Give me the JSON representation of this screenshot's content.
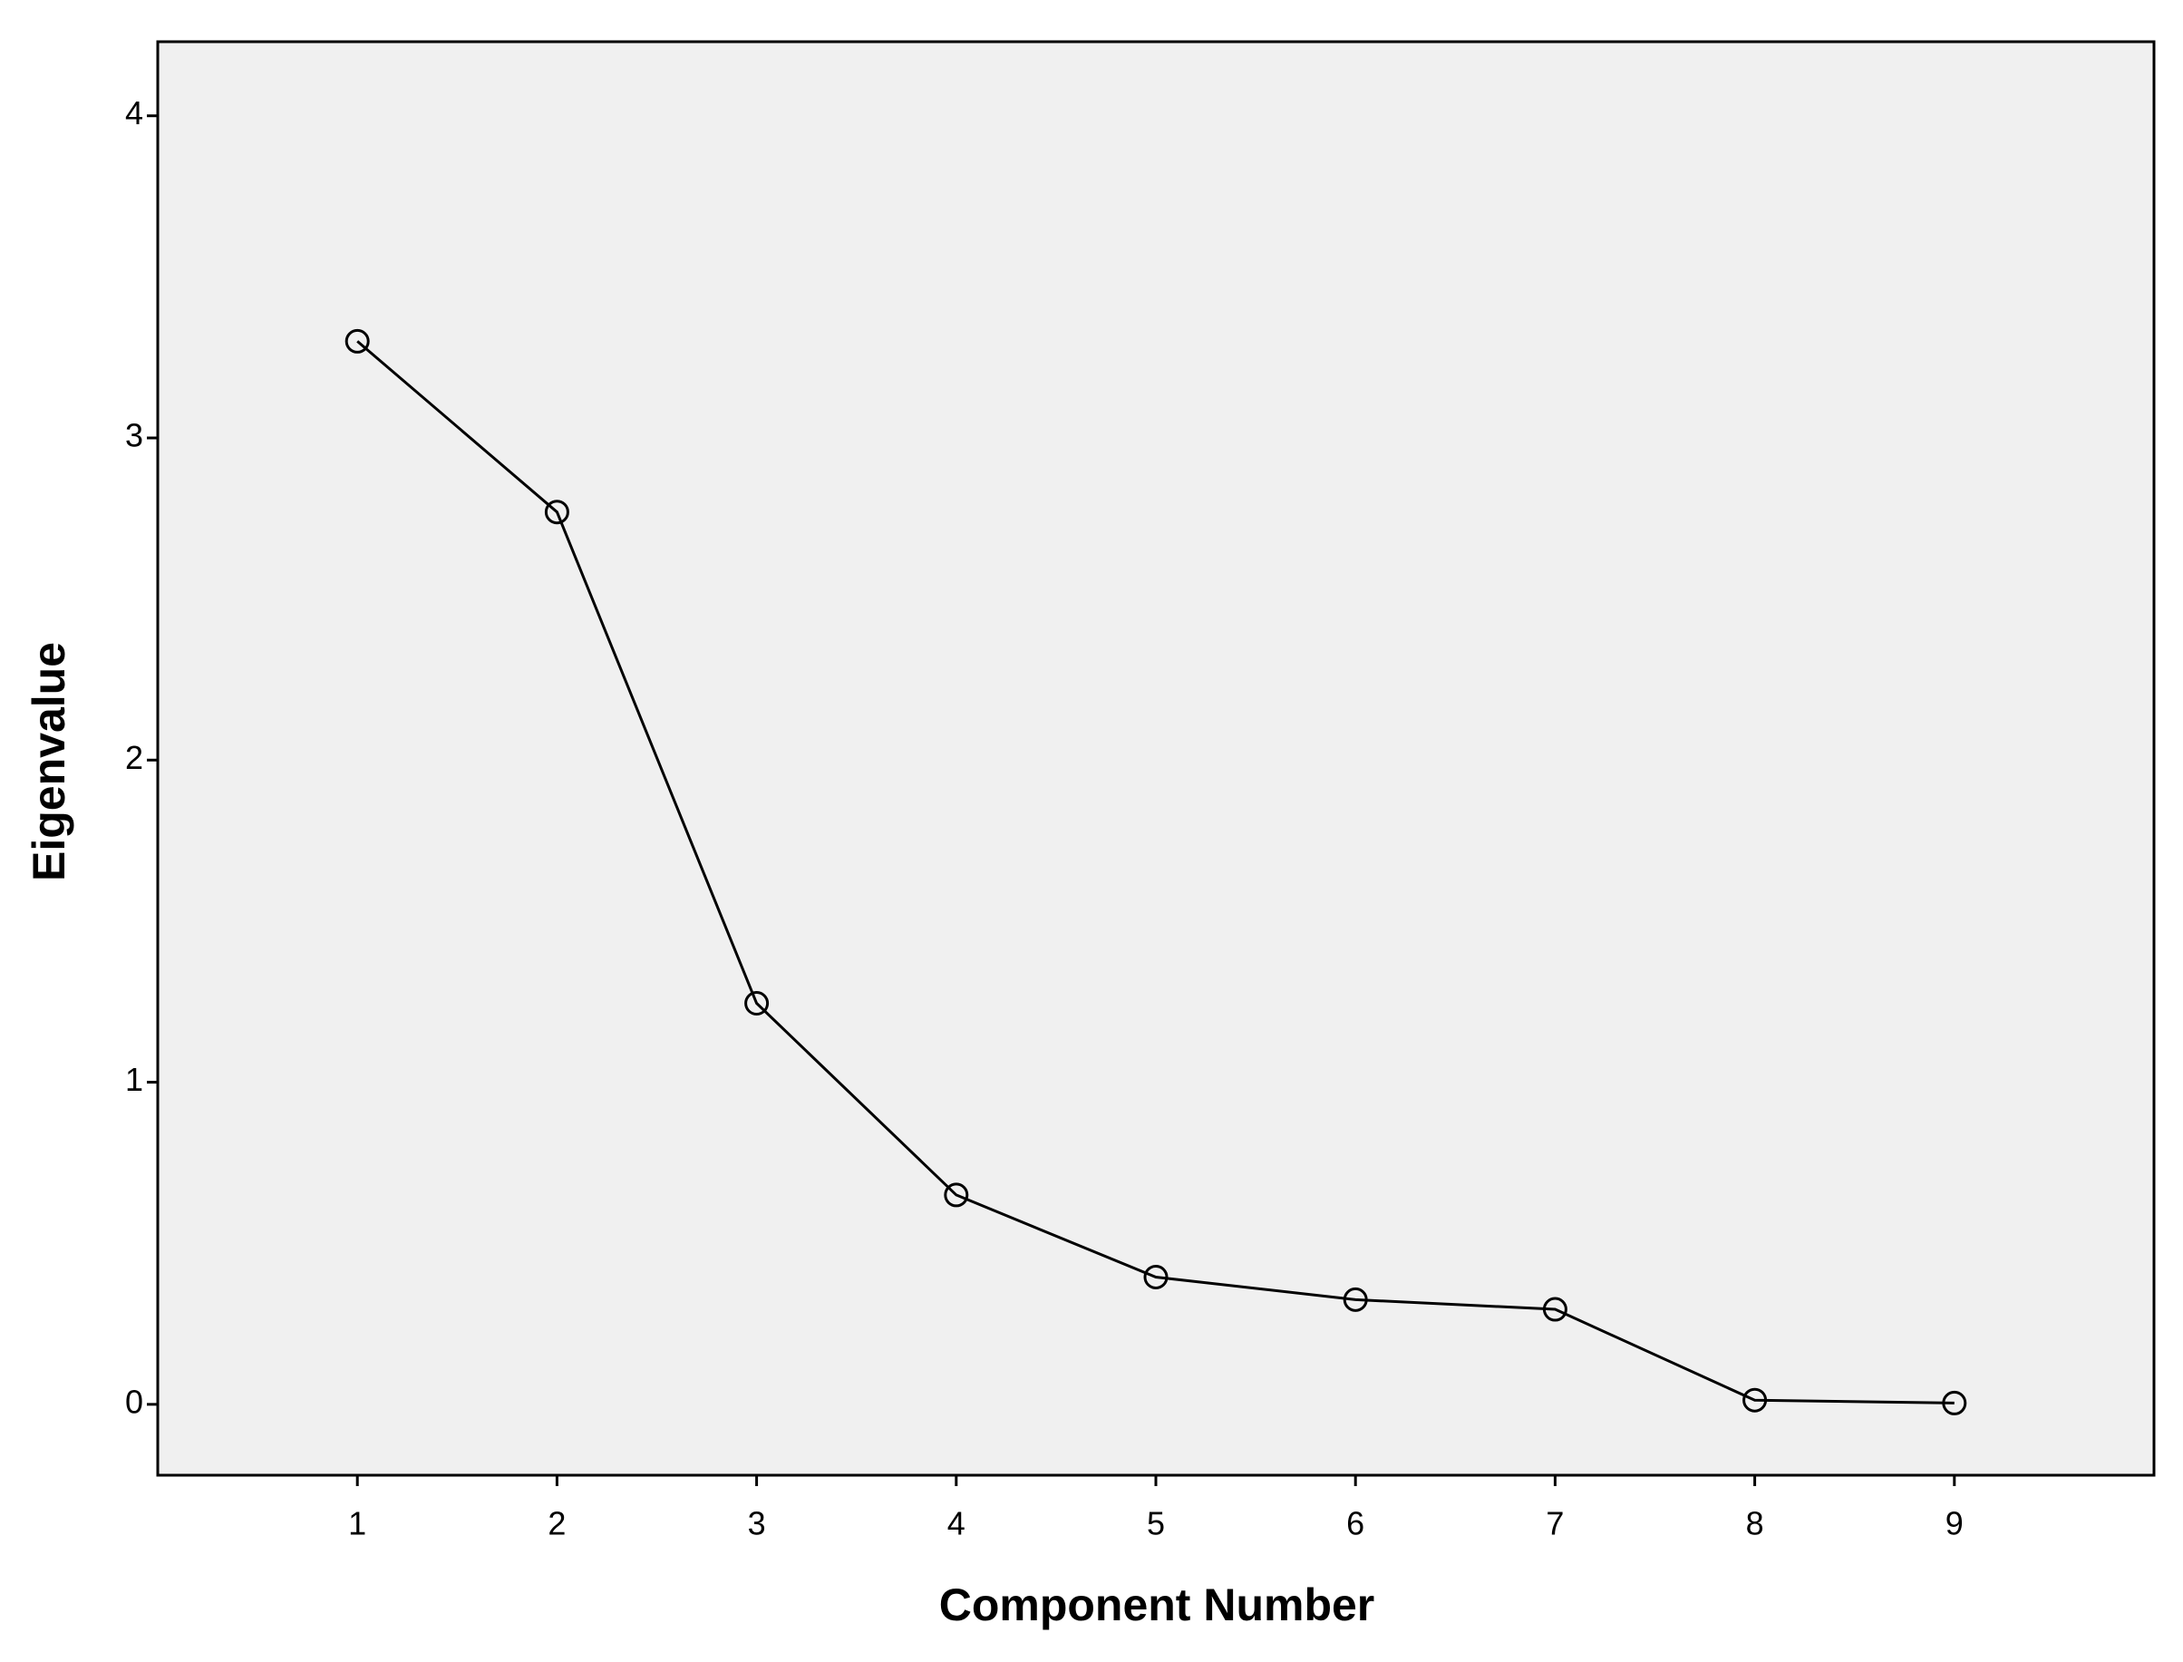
{
  "chart_data": {
    "type": "line",
    "x_label": "Component Number",
    "y_label": "Eigenvalue",
    "x": [
      1,
      2,
      3,
      4,
      5,
      6,
      7,
      8,
      9
    ],
    "series": [
      {
        "color": "#000000",
        "values": [
          3.3,
          2.77,
          1.245,
          0.65,
          0.395,
          0.325,
          0.295,
          0.013,
          0.004
        ]
      }
    ],
    "xlim": [
      0,
      10
    ],
    "xticks": [
      1,
      2,
      3,
      4,
      5,
      6,
      7,
      8,
      9
    ],
    "ylim": [
      -0.22,
      4.23
    ],
    "yticks": [
      0,
      1,
      2,
      3,
      4
    ],
    "grid": false
  }
}
